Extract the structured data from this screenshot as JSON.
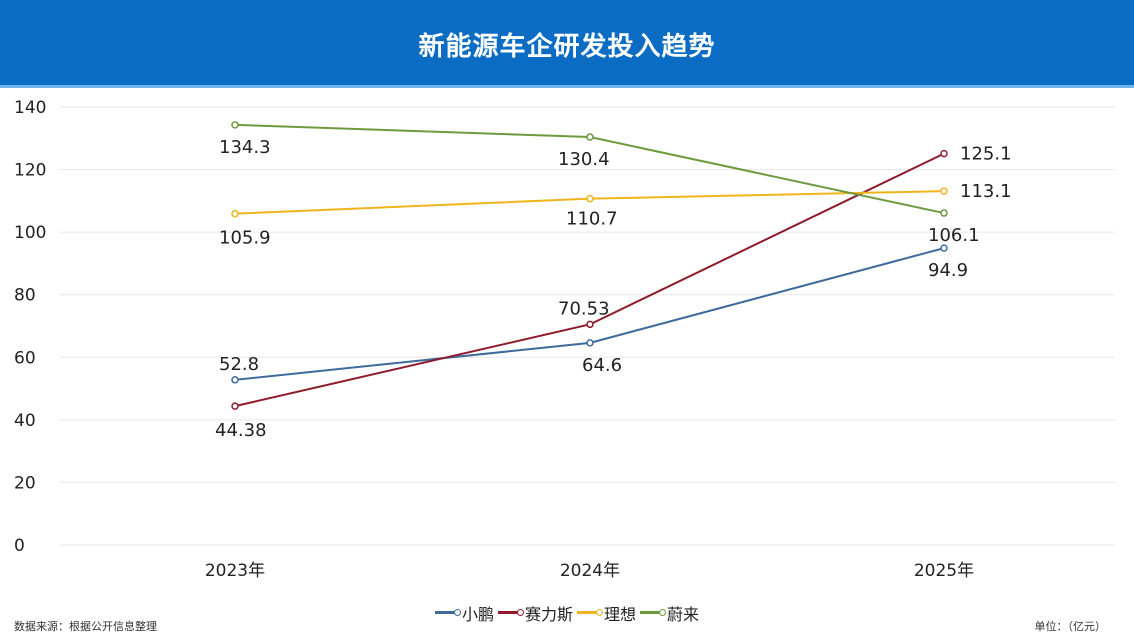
{
  "chart_data": {
    "type": "line",
    "title": "新能源车企研发投入趋势",
    "categories": [
      "2023年",
      "2024年",
      "2025年"
    ],
    "ylim": [
      0,
      140
    ],
    "yticks": [
      0,
      20,
      40,
      60,
      80,
      100,
      120,
      140
    ],
    "grid": true,
    "legend_position": "bottom",
    "series": [
      {
        "name": "小鹏",
        "values": [
          52.8,
          64.6,
          94.9
        ],
        "labels": [
          "52.8",
          "64.6",
          "94.9"
        ],
        "color": "#3e6b9c"
      },
      {
        "name": "赛力斯",
        "values": [
          44.38,
          70.53,
          125.1
        ],
        "labels": [
          "44.38",
          "70.53",
          "125.1"
        ],
        "color": "#8e1b2c"
      },
      {
        "name": "理想",
        "values": [
          105.9,
          110.7,
          113.1
        ],
        "labels": [
          "105.9",
          "110.7",
          "113.1"
        ],
        "color": "#f0b41c"
      },
      {
        "name": "蔚来",
        "values": [
          134.3,
          130.4,
          106.1
        ],
        "labels": [
          "134.3",
          "130.4",
          "106.1"
        ],
        "color": "#6e9a3e"
      }
    ],
    "source": "数据来源：根据公开信息整理",
    "unit": "单位：（亿元）"
  }
}
